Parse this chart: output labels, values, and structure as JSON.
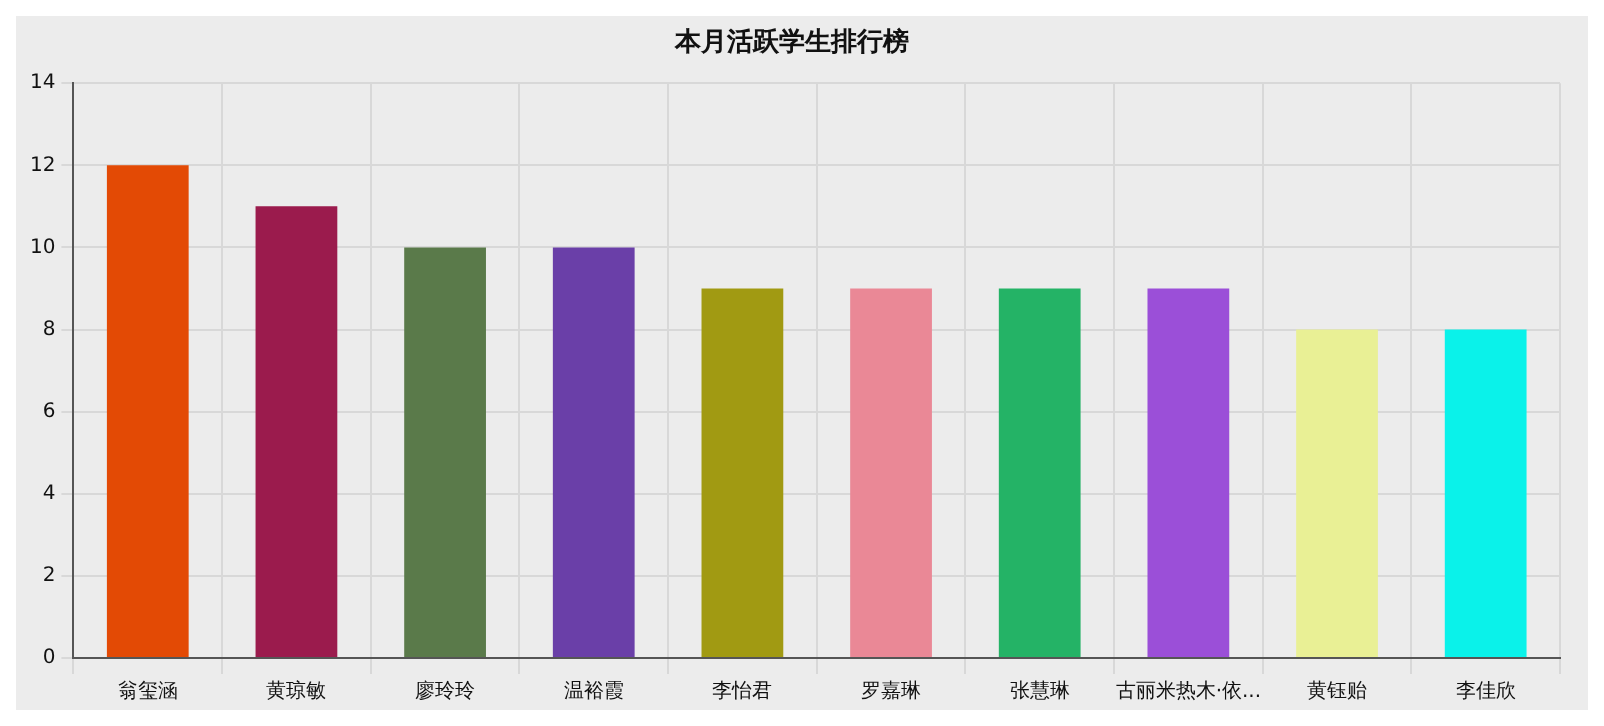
{
  "chart_data": {
    "type": "bar",
    "title": "本月活跃学生排行榜",
    "categories": [
      "翁玺涵",
      "黄琼敏",
      "廖玲玲",
      "温裕霞",
      "李怡君",
      "罗嘉琳",
      "张慧琳",
      "古丽米热木·依...",
      "黄钰贻",
      "李佳欣"
    ],
    "values": [
      12,
      11,
      10,
      10,
      9,
      9,
      9,
      9,
      8,
      8
    ],
    "colors": [
      "#e34a05",
      "#9b1b4d",
      "#5a7a4a",
      "#6a3fa8",
      "#a19a12",
      "#ea8896",
      "#24b366",
      "#9b4fd8",
      "#e9f095",
      "#0af2ea"
    ],
    "ylim": [
      0,
      14
    ],
    "yticks": [
      0,
      2,
      4,
      6,
      8,
      10,
      12,
      14
    ],
    "grid": true,
    "legend": false
  }
}
